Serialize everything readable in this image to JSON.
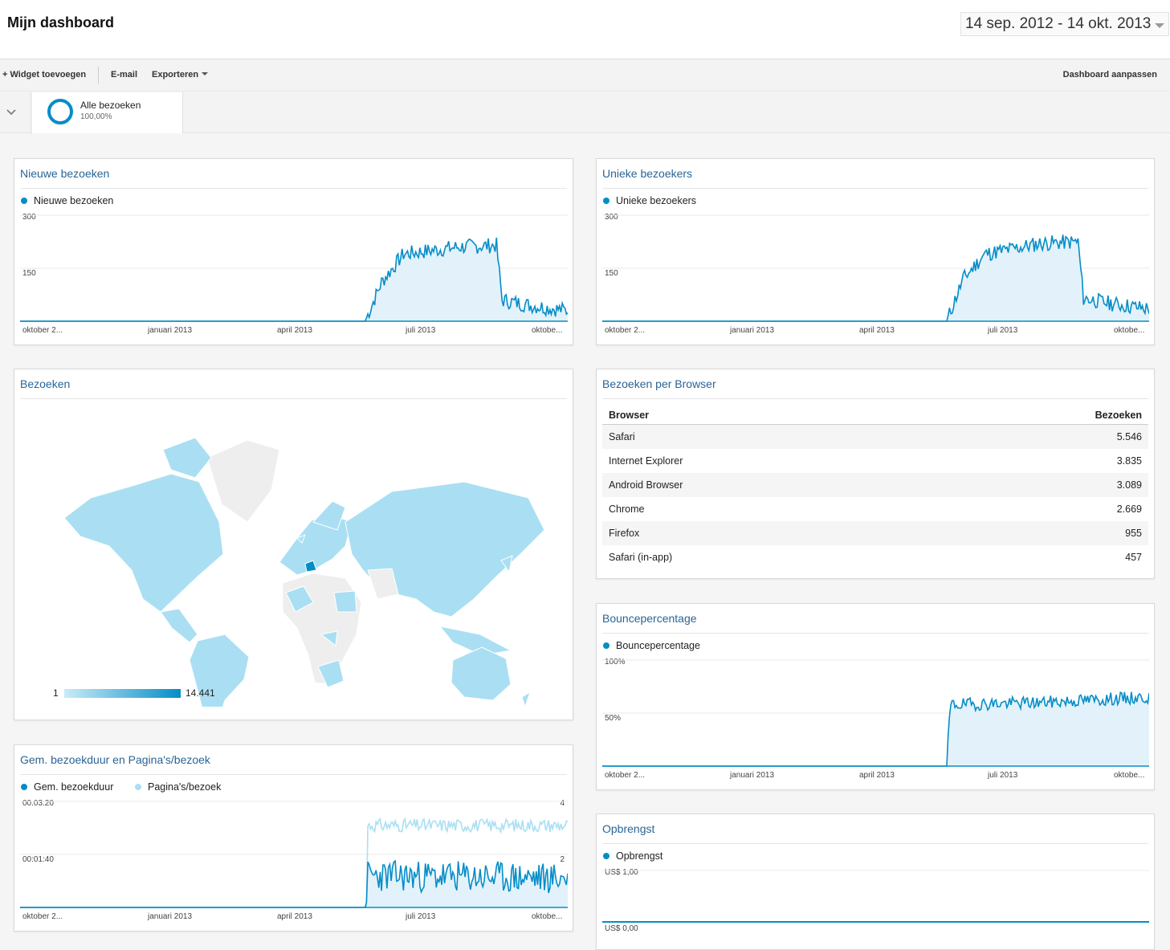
{
  "header": {
    "title": "Mijn dashboard",
    "date_range": "14 sep. 2012 - 14 okt. 2013"
  },
  "toolbar": {
    "add_widget": "+ Widget toevoegen",
    "email": "E-mail",
    "export": "Exporteren",
    "customize": "Dashboard aanpassen"
  },
  "segment": {
    "name": "Alle bezoeken",
    "percent": "100,00%"
  },
  "colors": {
    "primary": "#058dc7",
    "secondary": "#aadff3",
    "fill": "#e3f2fa",
    "title": "#2a6496"
  },
  "widgets": {
    "new_visits": {
      "title": "Nieuwe bezoeken",
      "legend": "Nieuwe bezoeken",
      "y_top": "300",
      "y_mid": "150",
      "x_labels": [
        "oktober 2...",
        "januari 2013",
        "april 2013",
        "juli 2013",
        "oktobe..."
      ]
    },
    "unique_visitors": {
      "title": "Unieke bezoekers",
      "legend": "Unieke bezoekers",
      "y_top": "300",
      "y_mid": "150",
      "x_labels": [
        "oktober 2...",
        "januari 2013",
        "april 2013",
        "juli 2013",
        "oktobe..."
      ]
    },
    "visits_map": {
      "title": "Bezoeken",
      "scale_min": "1",
      "scale_max": "14.441"
    },
    "browsers": {
      "title": "Bezoeken per Browser",
      "col_browser": "Browser",
      "col_visits": "Bezoeken",
      "rows": [
        {
          "name": "Safari",
          "value": "5.546"
        },
        {
          "name": "Internet Explorer",
          "value": "3.835"
        },
        {
          "name": "Android Browser",
          "value": "3.089"
        },
        {
          "name": "Chrome",
          "value": "2.669"
        },
        {
          "name": "Firefox",
          "value": "955"
        },
        {
          "name": "Safari (in-app)",
          "value": "457"
        }
      ]
    },
    "bounce": {
      "title": "Bouncepercentage",
      "legend": "Bouncepercentage",
      "y_top": "100%",
      "y_mid": "50%",
      "x_labels": [
        "oktober 2...",
        "januari 2013",
        "april 2013",
        "juli 2013",
        "oktobe..."
      ]
    },
    "duration": {
      "title": "Gem. bezoekduur en Pagina's/bezoek",
      "legend1": "Gem. bezoekduur",
      "legend2": "Pagina's/bezoek",
      "y_top": "00:03:20",
      "y_mid": "00:01:40",
      "y2_top": "4",
      "y2_mid": "2",
      "x_labels": [
        "oktober 2...",
        "januari 2013",
        "april 2013",
        "juli 2013",
        "oktobe..."
      ]
    },
    "revenue": {
      "title": "Opbrengst",
      "legend": "Opbrengst",
      "y_top": "US$ 1,00",
      "y_bottom": "US$ 0,00"
    }
  },
  "chart_data": [
    {
      "type": "area",
      "title": "Nieuwe bezoeken",
      "ylim": [
        0,
        300
      ],
      "x_range": [
        "2012-09-14",
        "2013-10-14"
      ],
      "profile": [
        {
          "x": 0,
          "y": 0
        },
        {
          "x": 0.63,
          "y": 0
        },
        {
          "x": 0.66,
          "y": 110
        },
        {
          "x": 0.7,
          "y": 190
        },
        {
          "x": 0.8,
          "y": 210
        },
        {
          "x": 0.87,
          "y": 215
        },
        {
          "x": 0.88,
          "y": 60
        },
        {
          "x": 0.93,
          "y": 45
        },
        {
          "x": 1,
          "y": 30
        }
      ]
    },
    {
      "type": "area",
      "title": "Unieke bezoekers",
      "ylim": [
        0,
        300
      ],
      "x_range": [
        "2012-09-14",
        "2013-10-14"
      ],
      "profile": [
        {
          "x": 0,
          "y": 0
        },
        {
          "x": 0.63,
          "y": 0
        },
        {
          "x": 0.66,
          "y": 120
        },
        {
          "x": 0.7,
          "y": 190
        },
        {
          "x": 0.8,
          "y": 220
        },
        {
          "x": 0.87,
          "y": 225
        },
        {
          "x": 0.88,
          "y": 65
        },
        {
          "x": 0.93,
          "y": 50
        },
        {
          "x": 1,
          "y": 35
        }
      ]
    },
    {
      "type": "area",
      "title": "Bouncepercentage",
      "ylim": [
        0,
        100
      ],
      "x_range": [
        "2012-09-14",
        "2013-10-14"
      ],
      "profile": [
        {
          "x": 0,
          "y": 0
        },
        {
          "x": 0.63,
          "y": 0
        },
        {
          "x": 0.636,
          "y": 55
        },
        {
          "x": 0.64,
          "y": 58
        },
        {
          "x": 0.8,
          "y": 60
        },
        {
          "x": 1,
          "y": 65
        }
      ]
    },
    {
      "type": "area",
      "title": "Gem. bezoekduur en Pagina's/bezoek",
      "ylim": [
        0,
        200
      ],
      "y2lim": [
        0,
        4
      ],
      "x_range": [
        "2012-09-14",
        "2013-10-14"
      ],
      "profile": [
        {
          "x": 0,
          "y": 0
        },
        {
          "x": 0.63,
          "y": 0
        },
        {
          "x": 0.635,
          "y": 60
        },
        {
          "x": 1,
          "y": 55
        }
      ]
    },
    {
      "type": "line",
      "title": "Opbrengst",
      "ylim": [
        0,
        1
      ],
      "profile": [
        {
          "x": 0,
          "y": 0
        },
        {
          "x": 1,
          "y": 0
        }
      ]
    }
  ]
}
